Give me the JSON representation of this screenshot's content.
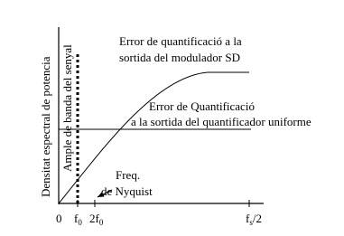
{
  "y_axis_label": "Densitat espectral de potencia",
  "bandwidth_label": "Ample de banda del senyal",
  "sd_error": {
    "line1": "Error de quantificació a la",
    "line2": "sortida del modulador SD"
  },
  "uniform_error": {
    "line1": "Error de Quantificació",
    "line2": "a la sortida del quantificador uniforme"
  },
  "nyquist": {
    "line1": "Freq.",
    "line2": "de Nyquist"
  },
  "x_ticks": [
    {
      "base": "0"
    },
    {
      "base": "f",
      "sub": "0"
    },
    {
      "base": "2f",
      "sub": "0"
    },
    {
      "base": "f",
      "sub": "s",
      "suffix": "/2"
    }
  ]
}
